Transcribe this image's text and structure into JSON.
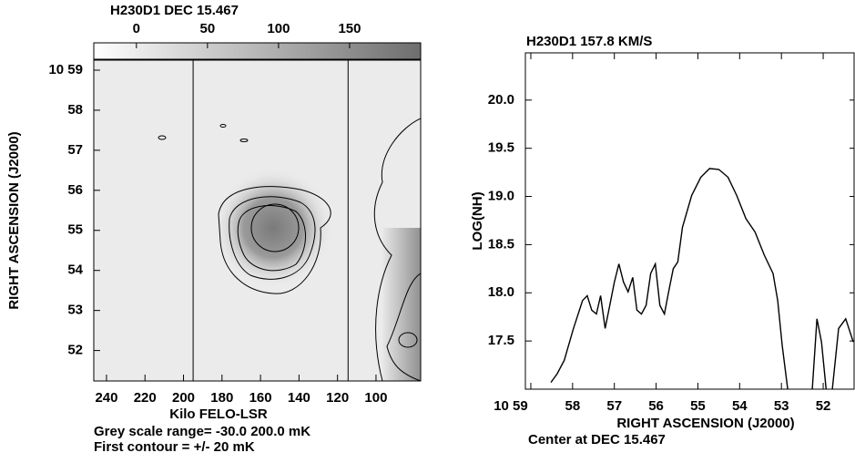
{
  "chart_data": [
    {
      "type": "image",
      "title": "H230D1 DEC 15.467",
      "xlabel": "Kilo FELO-LSR",
      "ylabel": "RIGHT ASCENSION (J2000)",
      "notes": [
        "Grey scale range= -30.0 200.0 mK",
        "First contour = +/- 20 mK"
      ],
      "clim": [
        -30,
        200
      ],
      "colorbar_ticks": [
        0,
        50,
        100,
        150
      ],
      "xlim": [
        246.6,
        76.8
      ],
      "xticks": [
        240,
        220,
        200,
        180,
        160,
        140,
        120,
        100
      ],
      "ylim": [
        51.24,
        59.25
      ],
      "yticks": [
        {
          "value": 59,
          "label": "10 59"
        },
        58,
        57,
        56,
        55,
        54,
        53,
        52
      ],
      "vlines": [
        195,
        114.5
      ]
    },
    {
      "type": "line",
      "title": "H230D1 157.8 KM/S",
      "xlabel": "RIGHT ASCENSION (J2000)",
      "ylabel": "LOG(NH)",
      "notes": [
        "Center at DEC 15.467"
      ],
      "xlim": [
        59.13,
        51.26
      ],
      "xticks": [
        {
          "value": 59,
          "label": "10 59"
        },
        58,
        57,
        56,
        55,
        54,
        53,
        52
      ],
      "ylim": [
        17.0,
        20.49
      ],
      "yticks": [
        {
          "value": 17.5,
          "label": "17.5"
        },
        {
          "value": 18,
          "label": "18.0"
        },
        {
          "value": 18.5,
          "label": "18.5"
        },
        {
          "value": 19,
          "label": "19.0"
        },
        {
          "value": 19.5,
          "label": "19.5"
        },
        {
          "value": 20,
          "label": "20.0"
        }
      ],
      "x": [
        58.52,
        58.37,
        58.2,
        57.98,
        57.76,
        57.65,
        57.54,
        57.43,
        57.33,
        57.22,
        57.11,
        57.0,
        56.89,
        56.78,
        56.67,
        56.56,
        56.46,
        56.35,
        56.24,
        56.13,
        56.02,
        55.91,
        55.8,
        55.7,
        55.59,
        55.48,
        55.37,
        55.15,
        54.93,
        54.72,
        54.5,
        54.28,
        54.07,
        53.85,
        53.63,
        53.41,
        53.2,
        53.09,
        52.98,
        52.85,
        52.6,
        52.26,
        52.15,
        52.04,
        51.93,
        51.85,
        51.78,
        51.63,
        51.46,
        51.28
      ],
      "values": [
        17.07,
        17.16,
        17.3,
        17.63,
        17.92,
        17.97,
        17.82,
        17.78,
        17.97,
        17.63,
        17.87,
        18.11,
        18.3,
        18.11,
        18.01,
        18.16,
        17.82,
        17.78,
        17.87,
        18.2,
        18.3,
        17.87,
        17.78,
        18.01,
        18.25,
        18.32,
        18.68,
        19.01,
        19.2,
        19.29,
        19.28,
        19.2,
        19.01,
        18.77,
        18.63,
        18.39,
        18.2,
        17.92,
        17.45,
        17.0,
        null,
        17.0,
        17.73,
        17.49,
        17.0,
        null,
        17.0,
        17.63,
        17.73,
        17.49
      ],
      "color": "#000000"
    }
  ]
}
